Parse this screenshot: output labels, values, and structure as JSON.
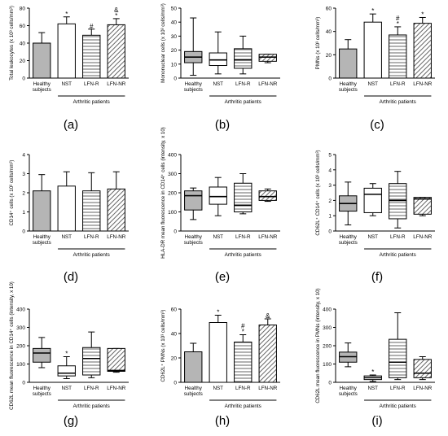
{
  "group_label": "Arthritic patients",
  "colors": {
    "healthy": "#b5b5b5",
    "nst": "#ffffff",
    "outline": "#000000"
  },
  "chart_data": [
    {
      "panel": "(a)",
      "type": "bar",
      "ylabel": "Total leukocytes (x 10³ cells/mm³)",
      "categories": [
        "Healthy subjects",
        "NST",
        "LFN-R",
        "LFN-NR"
      ],
      "ylim": [
        0,
        80
      ],
      "yticks": [
        0,
        20,
        40,
        60,
        80
      ],
      "values": [
        40,
        62,
        49,
        61
      ],
      "errors": [
        12,
        8,
        7,
        7
      ],
      "annotations": [
        "",
        "*",
        "#",
        "&\n*"
      ]
    },
    {
      "panel": "(b)",
      "type": "boxplot",
      "ylabel": "Mononuclear cells (x 10³ cells/mm³)",
      "categories": [
        "Healthy subjects",
        "NST",
        "LFN-R",
        "LFN-NR"
      ],
      "ylim": [
        0,
        50
      ],
      "yticks": [
        0,
        10,
        20,
        30,
        40,
        50
      ],
      "boxes": [
        {
          "min": 2,
          "q1": 11,
          "median": 15,
          "q3": 19,
          "max": 43
        },
        {
          "min": 3,
          "q1": 9,
          "median": 13,
          "q3": 18,
          "max": 33
        },
        {
          "min": 3,
          "q1": 7,
          "median": 13,
          "q3": 21,
          "max": 30
        },
        {
          "min": 11,
          "q1": 12,
          "median": 15,
          "q3": 17,
          "max": 17
        }
      ]
    },
    {
      "panel": "(c)",
      "type": "bar",
      "ylabel": "PMNs (x 10³ cells/mm³)",
      "categories": [
        "Healthy subjects",
        "NST",
        "LFN-R",
        "LFN-NR"
      ],
      "ylim": [
        0,
        60
      ],
      "yticks": [
        0,
        20,
        40,
        60
      ],
      "values": [
        25,
        48,
        37,
        47
      ],
      "errors": [
        8,
        7,
        7,
        5
      ],
      "annotations": [
        "",
        "*",
        "#\n*",
        "*"
      ]
    },
    {
      "panel": "(d)",
      "type": "bar",
      "ylabel": "CD14⁺ cells (x 10³ cells/mm³)",
      "categories": [
        "Healthy subjects",
        "NST",
        "LFN-R",
        "LFN-NR"
      ],
      "ylim": [
        0,
        4
      ],
      "yticks": [
        0,
        1,
        2,
        3,
        4
      ],
      "values": [
        2.1,
        2.35,
        2.1,
        2.2
      ],
      "errors": [
        0.85,
        0.75,
        0.95,
        0.9
      ],
      "annotations": [
        "",
        "",
        "",
        ""
      ]
    },
    {
      "panel": "(e)",
      "type": "boxplot",
      "ylabel": "HLA-DR mean fluorescence in CD14⁺ cells (intensity, x 10)",
      "categories": [
        "Healthy subjects",
        "NST",
        "LFN-R",
        "LFN-NR"
      ],
      "ylim": [
        0,
        400
      ],
      "yticks": [
        0,
        100,
        200,
        300,
        400
      ],
      "boxes": [
        {
          "min": 60,
          "q1": 110,
          "median": 185,
          "q3": 210,
          "max": 225
        },
        {
          "min": 80,
          "q1": 140,
          "median": 180,
          "q3": 230,
          "max": 280
        },
        {
          "min": 90,
          "q1": 100,
          "median": 135,
          "q3": 250,
          "max": 300
        },
        {
          "min": 155,
          "q1": 160,
          "median": 180,
          "q3": 210,
          "max": 220
        }
      ]
    },
    {
      "panel": "(f)",
      "type": "boxplot",
      "ylabel": "CD62L⁺ CD14⁺ cells (x 10³ cells/mm³)",
      "categories": [
        "Healthy subjects",
        "NST",
        "LFN-R",
        "LFN-NR"
      ],
      "ylim": [
        0,
        5
      ],
      "yticks": [
        0,
        1,
        2,
        3,
        4,
        5
      ],
      "boxes": [
        {
          "min": 0.4,
          "q1": 1.3,
          "median": 1.8,
          "q3": 2.3,
          "max": 3.2
        },
        {
          "min": 1.0,
          "q1": 1.2,
          "median": 2.4,
          "q3": 2.8,
          "max": 3.1
        },
        {
          "min": 0.2,
          "q1": 0.8,
          "median": 2.0,
          "q3": 3.1,
          "max": 3.9
        },
        {
          "min": 1.0,
          "q1": 1.1,
          "median": 2.1,
          "q3": 2.2,
          "max": 2.2
        }
      ]
    },
    {
      "panel": "(g)",
      "type": "boxplot",
      "ylabel": "CD62L mean fluorescence in CD14⁺ cells (intensity, x 10)",
      "categories": [
        "Healthy subjects",
        "NST",
        "LFN-R",
        "LFN-NR"
      ],
      "ylim": [
        0,
        400
      ],
      "yticks": [
        0,
        100,
        200,
        300,
        400
      ],
      "boxes": [
        {
          "min": 80,
          "q1": 110,
          "median": 160,
          "q3": 185,
          "max": 245
        },
        {
          "min": 20,
          "q1": 35,
          "median": 50,
          "q3": 90,
          "max": 140
        },
        {
          "min": 25,
          "q1": 40,
          "median": 130,
          "q3": 190,
          "max": 275
        },
        {
          "min": 55,
          "q1": 60,
          "median": 65,
          "q3": 185,
          "max": 185
        }
      ],
      "annotations": [
        "",
        "*",
        "",
        ""
      ]
    },
    {
      "panel": "(h)",
      "type": "bar",
      "ylabel": "CD62L⁺ PMNs (x 10³ cells/mm³)",
      "categories": [
        "Healthy subjects",
        "NST",
        "LFN-R",
        "LFN-NR"
      ],
      "ylim": [
        0,
        60
      ],
      "yticks": [
        0,
        20,
        40,
        60
      ],
      "values": [
        25,
        49,
        33,
        47
      ],
      "errors": [
        7,
        6,
        6,
        5
      ],
      "annotations": [
        "",
        "*",
        "#\n*",
        "&"
      ]
    },
    {
      "panel": "(i)",
      "type": "boxplot",
      "ylabel": "CD62L mean fluorescence in PMNs (intensity, x 10)",
      "categories": [
        "Healthy subjects",
        "NST",
        "LFN-R",
        "LFN-NR"
      ],
      "ylim": [
        0,
        400
      ],
      "yticks": [
        0,
        100,
        200,
        300,
        400
      ],
      "boxes": [
        {
          "min": 85,
          "q1": 110,
          "median": 140,
          "q3": 165,
          "max": 215
        },
        {
          "min": 5,
          "q1": 15,
          "median": 25,
          "q3": 35,
          "max": 40
        },
        {
          "min": 15,
          "q1": 25,
          "median": 110,
          "q3": 235,
          "max": 380
        },
        {
          "min": 15,
          "q1": 25,
          "median": 50,
          "q3": 125,
          "max": 140
        }
      ],
      "annotations": [
        "",
        "*",
        "",
        ""
      ]
    }
  ]
}
